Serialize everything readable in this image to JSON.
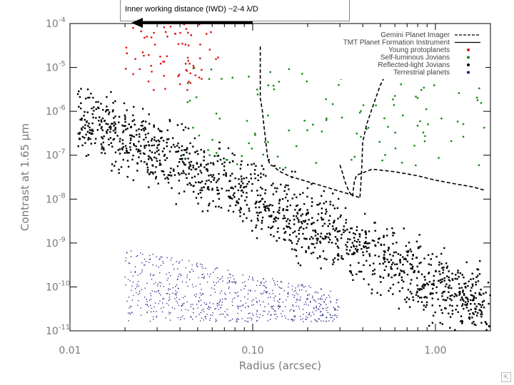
{
  "annotation": {
    "text": "Inner working distance (IWD) ~2-4 λ/D"
  },
  "corner_icon": "resize-icon",
  "chart_data": {
    "type": "scatter",
    "title": "",
    "xlabel": "Radius (arcsec)",
    "ylabel": "Contrast at 1.65 μm",
    "x_scale": "log",
    "y_scale": "log",
    "xlim": [
      0.01,
      2.0
    ],
    "ylim": [
      1e-11,
      0.0001
    ],
    "x_ticks": [
      {
        "value": 0.01,
        "label": "0.01"
      },
      {
        "value": 0.1,
        "label": "0.10"
      },
      {
        "value": 1.0,
        "label": "1.00"
      }
    ],
    "y_ticks": [
      {
        "value": 0.0001,
        "base": "10",
        "exp": "-4"
      },
      {
        "value": 1e-05,
        "base": "10",
        "exp": "-5"
      },
      {
        "value": 1e-06,
        "base": "10",
        "exp": "-6"
      },
      {
        "value": 1e-07,
        "base": "10",
        "exp": "-7"
      },
      {
        "value": 1e-08,
        "base": "10",
        "exp": "-8"
      },
      {
        "value": 1e-09,
        "base": "10",
        "exp": "-9"
      },
      {
        "value": 1e-10,
        "base": "10",
        "exp": "-10"
      },
      {
        "value": 1e-11,
        "base": "10",
        "exp": "-11"
      }
    ],
    "grid": false,
    "legend_position": "top-right",
    "colors": {
      "young_protoplanets": "#dd1111",
      "self_luminous_jovians": "#118811",
      "reflected_light_jovians": "#000000",
      "terrestrial_planets": "#1a1a80",
      "curves": "#000000"
    },
    "lines": [
      {
        "name": "Gemini Planet Imager",
        "style": "dashed",
        "x": [
          0.11,
          0.11,
          0.113,
          0.115,
          0.118,
          0.121,
          0.125,
          0.13,
          0.14,
          0.16,
          0.2,
          0.25,
          0.3,
          0.35,
          0.38,
          0.386,
          0.39,
          0.395,
          0.4,
          0.42,
          0.46,
          0.5,
          0.56,
          0.63
        ],
        "y": [
          3e-05,
          2e-06,
          1e-06,
          5e-07,
          2e-07,
          8e-08,
          6e-08,
          5.6e-08,
          4.3e-08,
          3.3e-08,
          2.5e-08,
          1.9e-08,
          1.5e-08,
          1.25e-08,
          1.1e-08,
          1.05e-08,
          2e-08,
          5e-08,
          2e-07,
          5e-07,
          1.5e-06,
          4e-06,
          1e-05,
          3e-05
        ]
      },
      {
        "name": "TMT Planet Formation Instrument",
        "style": "dashed",
        "x": [
          0.3,
          0.31,
          0.32,
          0.33,
          0.34,
          0.35,
          0.352,
          0.355,
          0.36,
          0.37,
          0.45,
          0.6,
          0.8,
          1.0,
          1.3,
          1.6,
          1.85
        ],
        "y": [
          6e-08,
          4e-08,
          2.5e-08,
          1.8e-08,
          1.4e-08,
          1.2e-08,
          1.15e-08,
          1.6e-08,
          2.5e-08,
          3.5e-08,
          4.8e-08,
          4.2e-08,
          3.4e-08,
          2.7e-08,
          2.2e-08,
          1.9e-08,
          1.6e-08
        ]
      }
    ],
    "series": [
      {
        "name": "Young protoplanets",
        "marker": "square",
        "x_range": [
          0.02,
          0.065
        ],
        "y_range": [
          3e-06,
          0.0001
        ],
        "count": 70
      },
      {
        "name": "Self-luminous Jovians",
        "marker": "square",
        "x_range": [
          0.04,
          1.9
        ],
        "y_range": [
          5e-08,
          1e-05
        ],
        "count": 120
      },
      {
        "name": "Reflected-light Jovians",
        "marker": "square",
        "x_range": [
          0.011,
          2.0
        ],
        "y_range": [
          1e-11,
          5e-06
        ],
        "count": 1400
      },
      {
        "name": "Terrestrial planets",
        "marker": "dot",
        "x_range": [
          0.02,
          0.3
        ],
        "y_range": [
          1e-11,
          5e-10
        ],
        "count": 700
      }
    ]
  }
}
